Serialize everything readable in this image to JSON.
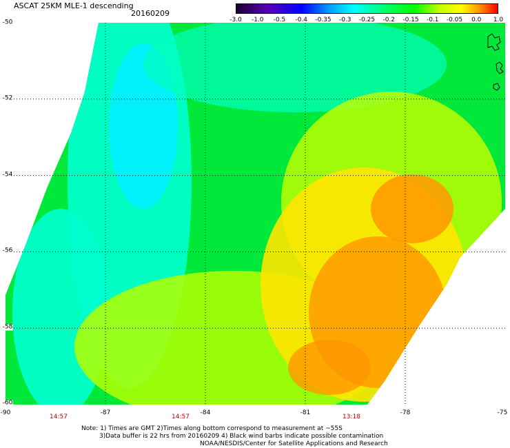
{
  "header": {
    "title": "ASCAT 25KM MLE-1 descending",
    "date": "20160209"
  },
  "colorbar": {
    "labels": [
      "-3.0",
      "-1.0",
      "-0.5",
      "-0.4",
      "-0.35",
      "-0.3",
      "-0.25",
      "-0.2",
      "-0.15",
      "-0.1",
      "-0.05",
      "0.0",
      "1.0"
    ],
    "colors": [
      "#1a0033",
      "#5a00b4",
      "#0000ff",
      "#0064ff",
      "#00b4ff",
      "#00ffff",
      "#00ff96",
      "#00ff00",
      "#96ff00",
      "#ffff00",
      "#ffb400",
      "#ff7800",
      "#ff0000"
    ]
  },
  "axes": {
    "lat_labels": [
      "-50",
      "-52",
      "-54",
      "-56",
      "-58",
      "-60"
    ],
    "lon_labels": [
      "-90",
      "-87",
      "-84",
      "-81",
      "-78",
      "-75"
    ],
    "lat_range": [
      -60,
      -50
    ],
    "lon_range": [
      -90,
      -75
    ]
  },
  "times": [
    "14:57",
    "14:57",
    "13:18"
  ],
  "notes": {
    "line1": "Note: 1) Times are GMT 2)Times along bottom correspond to measurement at ~55S",
    "line2": "3)Data buffer is 22 hrs from 20160209 4) Black wind barbs indicate possible contamination",
    "line3": "NOAA/NESDIS/Center for Satellite Applications and Research"
  }
}
